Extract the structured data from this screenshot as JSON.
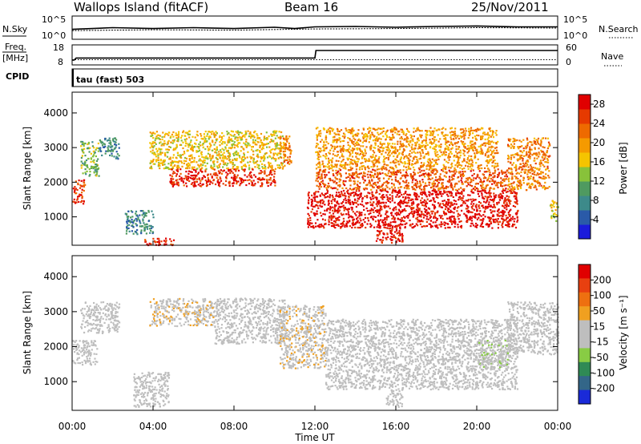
{
  "header": {
    "station": "Wallops Island (fitACF)",
    "beam": "Beam 16",
    "date": "25/Nov/2011"
  },
  "panel_labels": {
    "nsky": "N.Sky",
    "nsearch": "N.Search",
    "freq": "Freq.",
    "freq_unit": "[MHz]",
    "nave": "Nave",
    "cpid": "CPID",
    "cpid_value": "tau (fast) 503",
    "slant_range": "Slant Range [km]",
    "power": "Power [dB]",
    "velocity": "Velocity [m s⁻¹]",
    "xlabel": "Time UT"
  },
  "colors": {
    "power_scale": [
      "#1b1bdb",
      "#2a5aa8",
      "#3d8a8a",
      "#4f9a60",
      "#88c23a",
      "#f5c400",
      "#f59a00",
      "#ee6a00",
      "#e63a00",
      "#e00000"
    ],
    "velocity_scale": [
      "#1a2ad8",
      "#336688",
      "#2f8a55",
      "#88cc44",
      "#bebebe",
      "#bebebe",
      "#f0a020",
      "#ee7010",
      "#e84010",
      "#e00000"
    ]
  },
  "chart_data": [
    {
      "type": "line",
      "title": "",
      "xlabel": "",
      "ylabel": "N.Sky",
      "y2label": "N.Search",
      "y_ticks": [
        "10^5",
        "10^0"
      ],
      "y2_ticks": [
        "10^5",
        "10^0"
      ],
      "x_hours": [
        0,
        4,
        8,
        12,
        16,
        20,
        24
      ],
      "series": [
        {
          "values": [
            [
              0,
              2.0
            ],
            [
              2,
              2.4
            ],
            [
              4,
              2.2
            ],
            [
              6,
              2.4
            ],
            [
              8,
              2.2
            ],
            [
              10,
              2.5
            ],
            [
              11,
              2.2
            ],
            [
              12,
              2.6
            ],
            [
              14,
              2.7
            ],
            [
              16,
              2.5
            ],
            [
              18,
              2.7
            ],
            [
              20,
              2.8
            ],
            [
              22,
              2.6
            ],
            [
              24,
              2.6
            ]
          ]
        },
        {
          "values": [
            [
              0,
              1.7
            ],
            [
              4,
              1.9
            ],
            [
              8,
              1.8
            ],
            [
              12,
              2.1
            ],
            [
              16,
              2.2
            ],
            [
              20,
              2.4
            ],
            [
              24,
              2.3
            ]
          ]
        }
      ]
    },
    {
      "type": "line",
      "title": "",
      "xlabel": "",
      "ylabel": "Freq. [MHz]",
      "y2label": "Nave",
      "ylim": [
        8,
        18
      ],
      "y2lim": [
        0,
        60
      ],
      "y_ticks": [
        "18",
        "8"
      ],
      "y2_ticks": [
        "60",
        "0"
      ],
      "series": [
        {
          "values": [
            [
              0,
              10.2
            ],
            [
              0.1,
              10.2
            ],
            [
              0.2,
              11.3
            ],
            [
              12,
              11.3
            ],
            [
              12.05,
              15.4
            ],
            [
              24,
              15.4
            ]
          ]
        },
        {
          "values": [
            [
              0,
              10.4
            ],
            [
              24,
              10.4
            ]
          ]
        }
      ]
    },
    {
      "type": "heatmap",
      "title": "",
      "xlabel": "",
      "ylabel": "Slant Range [km]",
      "colorbar_label": "Power [dB]",
      "xlim": [
        0,
        24
      ],
      "ylim": [
        180,
        4600
      ],
      "y_ticks": [
        1000,
        2000,
        3000,
        4000
      ],
      "colorbar_ticks": [
        4,
        8,
        12,
        16,
        20,
        24,
        28
      ],
      "colorbar_range": [
        0,
        30
      ],
      "regions": [
        {
          "t0": 0.0,
          "t1": 0.6,
          "r0": 1400,
          "r1": 2100,
          "value": 26
        },
        {
          "t0": 0.4,
          "t1": 1.3,
          "r0": 2200,
          "r1": 3200,
          "value": 12
        },
        {
          "t0": 1.3,
          "t1": 2.3,
          "r0": 2700,
          "r1": 3300,
          "value": 8
        },
        {
          "t0": 2.6,
          "t1": 4.0,
          "r0": 500,
          "r1": 1200,
          "value": 8
        },
        {
          "t0": 3.5,
          "t1": 5.0,
          "r0": 200,
          "r1": 400,
          "value": 27
        },
        {
          "t0": 3.8,
          "t1": 10.5,
          "r0": 2400,
          "r1": 3500,
          "value": 17
        },
        {
          "t0": 4.8,
          "t1": 10.0,
          "r0": 1900,
          "r1": 2400,
          "value": 27
        },
        {
          "t0": 10.2,
          "t1": 10.8,
          "r0": 2500,
          "r1": 3400,
          "value": 22
        },
        {
          "t0": 11.6,
          "t1": 22.0,
          "r0": 700,
          "r1": 1800,
          "value": 29
        },
        {
          "t0": 12.0,
          "t1": 21.5,
          "r0": 1800,
          "r1": 2400,
          "value": 24
        },
        {
          "t0": 12.0,
          "t1": 21.0,
          "r0": 2400,
          "r1": 3600,
          "value": 20
        },
        {
          "t0": 15.0,
          "t1": 16.3,
          "r0": 250,
          "r1": 800,
          "value": 28
        },
        {
          "t0": 21.5,
          "t1": 23.6,
          "r0": 1800,
          "r1": 3300,
          "value": 21
        },
        {
          "t0": 23.6,
          "t1": 24.0,
          "r0": 900,
          "r1": 1500,
          "value": 16
        }
      ]
    },
    {
      "type": "heatmap",
      "title": "",
      "xlabel": "Time UT",
      "ylabel": "Slant Range [km]",
      "colorbar_label": "Velocity [m s⁻¹]",
      "xlim": [
        0,
        24
      ],
      "ylim": [
        180,
        4600
      ],
      "x_ticks": [
        "00:00",
        "04:00",
        "08:00",
        "12:00",
        "16:00",
        "20:00",
        "00:00"
      ],
      "y_ticks": [
        1000,
        2000,
        3000,
        4000
      ],
      "colorbar_ticks": [
        200,
        100,
        50,
        15,
        -15,
        -50,
        -100,
        -200
      ],
      "regions": [
        {
          "t0": 0.0,
          "t1": 1.2,
          "r0": 1500,
          "r1": 2200,
          "value": 0
        },
        {
          "t0": 0.4,
          "t1": 2.3,
          "r0": 2400,
          "r1": 3300,
          "value": 0
        },
        {
          "t0": 3.0,
          "t1": 4.8,
          "r0": 300,
          "r1": 1300,
          "value": 0
        },
        {
          "t0": 3.8,
          "t1": 7.0,
          "r0": 2600,
          "r1": 3400,
          "value": 40
        },
        {
          "t0": 7.0,
          "t1": 10.5,
          "r0": 2100,
          "r1": 3400,
          "value": 0
        },
        {
          "t0": 10.2,
          "t1": 12.5,
          "r0": 1400,
          "r1": 3200,
          "value": 40
        },
        {
          "t0": 12.5,
          "t1": 22.0,
          "r0": 800,
          "r1": 2800,
          "value": 0
        },
        {
          "t0": 15.5,
          "t1": 16.3,
          "r0": 300,
          "r1": 800,
          "value": 0
        },
        {
          "t0": 20.0,
          "t1": 21.5,
          "r0": 1400,
          "r1": 2200,
          "value": -40
        },
        {
          "t0": 21.5,
          "t1": 24.0,
          "r0": 1800,
          "r1": 3300,
          "value": 0
        }
      ]
    }
  ]
}
